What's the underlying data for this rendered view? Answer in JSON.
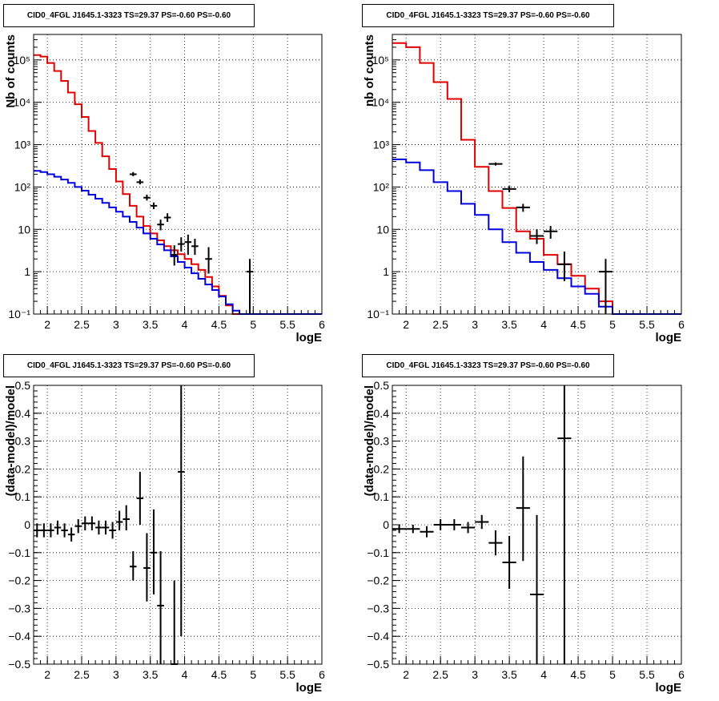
{
  "chart_data": [
    {
      "id": "p1",
      "type": "step-histogram-log",
      "title": "CID0_4FGL J1645.1-3323 TS=29.37 PS=-0.60 PS=-0.60",
      "xlabel": "logE",
      "ylabel": "Nb of counts",
      "xlim": [
        1.8,
        6
      ],
      "ylim": [
        0.1,
        400000
      ],
      "log_y": true,
      "grid": true,
      "xticks": [
        2,
        2.5,
        3,
        3.5,
        4,
        4.5,
        5,
        5.5,
        6
      ],
      "xtick_labels": [
        "2",
        "2.5",
        "3",
        "3.5",
        "4",
        "4.5",
        "5",
        "5.5",
        "6"
      ],
      "yticks": [
        0.1,
        1,
        10,
        100,
        1000,
        10000,
        100000
      ],
      "ytick_labels": [
        "10⁻¹",
        "1",
        "10",
        "10²",
        "10³",
        "10⁴",
        "10⁵"
      ],
      "bin_edges": [
        1.8,
        1.9,
        2.0,
        2.1,
        2.2,
        2.3,
        2.4,
        2.5,
        2.6,
        2.7,
        2.8,
        2.9,
        3.0,
        3.1,
        3.2,
        3.3,
        3.4,
        3.5,
        3.6,
        3.7,
        3.8,
        3.9,
        4.0,
        4.1,
        4.2,
        4.3,
        4.4,
        4.5,
        4.6,
        4.7,
        4.8,
        4.9,
        5.0,
        5.1,
        5.2,
        5.3,
        5.4,
        5.5,
        5.6,
        5.7,
        5.8,
        5.9,
        6.0
      ],
      "series": [
        {
          "color": "#e00000",
          "values": [
            130000,
            120000,
            85000,
            55000,
            32000,
            17000,
            9000,
            4500,
            2100,
            1100,
            530,
            265,
            135,
            68,
            36,
            20,
            12,
            8,
            5.5,
            4,
            3.2,
            2.6,
            2.0,
            1.5,
            1.1,
            0.75,
            0.45,
            0.27,
            0.16,
            0.1,
            0.1,
            0.1,
            0.1,
            0.1,
            0.1,
            0.1,
            0.1,
            0.1,
            0.1,
            0.1,
            0.1,
            0.1
          ]
        },
        {
          "color": "#0000dd",
          "values": [
            240,
            225,
            200,
            175,
            150,
            125,
            100,
            82,
            66,
            53,
            42,
            33,
            26,
            20,
            15,
            11,
            8,
            6,
            4.4,
            3.2,
            2.3,
            1.7,
            1.25,
            0.92,
            0.68,
            0.5,
            0.37,
            0.26,
            0.17,
            0.12,
            0.1,
            0.1,
            0.1,
            0.1,
            0.1,
            0.1,
            0.1,
            0.1,
            0.1,
            0.1,
            0.1,
            0.1
          ]
        }
      ],
      "points": [
        {
          "x": 3.25,
          "y": 200,
          "xerr": 0.05,
          "ylo": 180,
          "yhi": 225
        },
        {
          "x": 3.35,
          "y": 130,
          "xerr": 0.05,
          "ylo": 115,
          "yhi": 150
        },
        {
          "x": 3.45,
          "y": 56,
          "xerr": 0.05,
          "ylo": 48,
          "yhi": 66
        },
        {
          "x": 3.55,
          "y": 36,
          "xerr": 0.05,
          "ylo": 30,
          "yhi": 43
        },
        {
          "x": 3.65,
          "y": 13,
          "xerr": 0.05,
          "ylo": 9.5,
          "yhi": 17
        },
        {
          "x": 3.75,
          "y": 19,
          "xerr": 0.05,
          "ylo": 15,
          "yhi": 24
        },
        {
          "x": 3.85,
          "y": 2.5,
          "xerr": 0.05,
          "ylo": 1.4,
          "yhi": 4.2
        },
        {
          "x": 3.95,
          "y": 4.5,
          "xerr": 0.05,
          "ylo": 3.0,
          "yhi": 6.5
        },
        {
          "x": 4.05,
          "y": 5.0,
          "xerr": 0.05,
          "ylo": 2.5,
          "yhi": 7.5
        },
        {
          "x": 4.15,
          "y": 4.0,
          "xerr": 0.05,
          "ylo": 2.5,
          "yhi": 6.0
        },
        {
          "x": 4.35,
          "y": 2.0,
          "xerr": 0.05,
          "ylo": 0.9,
          "yhi": 3.8
        },
        {
          "x": 4.95,
          "y": 1.0,
          "xerr": 0.05,
          "ylo": 0.1,
          "yhi": 2.0
        }
      ]
    },
    {
      "id": "p2",
      "type": "step-histogram-log",
      "title": "CID0_4FGL J1645.1-3323 TS=29.37 PS=-0.60 PS=-0.60",
      "xlabel": "logE",
      "ylabel": "nb of counts",
      "xlim": [
        1.8,
        6
      ],
      "ylim": [
        0.1,
        400000
      ],
      "log_y": true,
      "grid": true,
      "xticks": [
        2,
        2.5,
        3,
        3.5,
        4,
        4.5,
        5,
        5.5,
        6
      ],
      "xtick_labels": [
        "2",
        "2.5",
        "3",
        "3.5",
        "4",
        "4.5",
        "5",
        "5.5",
        "6"
      ],
      "yticks": [
        0.1,
        1,
        10,
        100,
        1000,
        10000,
        100000
      ],
      "ytick_labels": [
        "10⁻¹",
        "1",
        "10",
        "10²",
        "10³",
        "10⁴",
        "10⁵"
      ],
      "bin_edges": [
        1.8,
        2.0,
        2.2,
        2.4,
        2.6,
        2.8,
        3.0,
        3.2,
        3.4,
        3.6,
        3.8,
        4.0,
        4.2,
        4.4,
        4.6,
        4.8,
        5.0,
        5.2,
        5.4,
        5.6,
        5.8,
        6.0
      ],
      "series": [
        {
          "color": "#e00000",
          "values": [
            250000,
            200000,
            85000,
            30000,
            12000,
            1300,
            300,
            80,
            32,
            9,
            6,
            2.5,
            1.5,
            0.8,
            0.4,
            0.2,
            0.1,
            0.1,
            0.1,
            0.1,
            0.1
          ]
        },
        {
          "color": "#0000dd",
          "values": [
            450,
            380,
            250,
            130,
            80,
            40,
            22,
            10,
            5,
            2.8,
            1.7,
            1.1,
            0.7,
            0.45,
            0.3,
            0.15,
            0.1,
            0.1,
            0.1,
            0.1,
            0.1
          ]
        }
      ],
      "points": [
        {
          "x": 3.3,
          "y": 350,
          "xerr": 0.1,
          "ylo": 320,
          "yhi": 380
        },
        {
          "x": 3.5,
          "y": 90,
          "xerr": 0.1,
          "ylo": 75,
          "yhi": 105
        },
        {
          "x": 3.7,
          "y": 33,
          "xerr": 0.1,
          "ylo": 26,
          "yhi": 40
        },
        {
          "x": 3.9,
          "y": 7,
          "xerr": 0.1,
          "ylo": 4.5,
          "yhi": 10
        },
        {
          "x": 4.1,
          "y": 9,
          "xerr": 0.1,
          "ylo": 6,
          "yhi": 12
        },
        {
          "x": 4.3,
          "y": 1.5,
          "xerr": 0.1,
          "ylo": 0.6,
          "yhi": 3
        },
        {
          "x": 4.9,
          "y": 1.0,
          "xerr": 0.1,
          "ylo": 0.1,
          "yhi": 2
        }
      ]
    },
    {
      "id": "p3",
      "type": "scatter-errorbars",
      "title": "CID0_4FGL J1645.1-3323 TS=29.37 PS=-0.60 PS=-0.60",
      "xlabel": "logE",
      "ylabel": "(data-model)/model",
      "xlim": [
        1.8,
        6
      ],
      "ylim": [
        -0.5,
        0.5
      ],
      "log_y": false,
      "grid": true,
      "xticks": [
        2,
        2.5,
        3,
        3.5,
        4,
        4.5,
        5,
        5.5,
        6
      ],
      "xtick_labels": [
        "2",
        "2.5",
        "3",
        "3.5",
        "4",
        "4.5",
        "5",
        "5.5",
        "6"
      ],
      "yticks": [
        -0.5,
        -0.4,
        -0.3,
        -0.2,
        -0.1,
        0,
        0.1,
        0.2,
        0.3,
        0.4,
        0.5
      ],
      "ytick_labels": [
        "−0.5",
        "−0.4",
        "−0.3",
        "−0.2",
        "−0.1",
        "0",
        "0.1",
        "0.2",
        "0.3",
        "0.4",
        "0.5"
      ],
      "points": [
        {
          "x": 1.85,
          "y": -0.02,
          "xerr": 0.05,
          "ylo": -0.045,
          "yhi": 0.005
        },
        {
          "x": 1.95,
          "y": -0.02,
          "xerr": 0.05,
          "ylo": -0.045,
          "yhi": 0.005
        },
        {
          "x": 2.05,
          "y": -0.02,
          "xerr": 0.05,
          "ylo": -0.045,
          "yhi": 0.005
        },
        {
          "x": 2.15,
          "y": -0.01,
          "xerr": 0.05,
          "ylo": -0.035,
          "yhi": 0.015
        },
        {
          "x": 2.25,
          "y": -0.02,
          "xerr": 0.05,
          "ylo": -0.045,
          "yhi": 0.005
        },
        {
          "x": 2.35,
          "y": -0.035,
          "xerr": 0.05,
          "ylo": -0.06,
          "yhi": -0.01
        },
        {
          "x": 2.45,
          "y": -0.005,
          "xerr": 0.05,
          "ylo": -0.03,
          "yhi": 0.02
        },
        {
          "x": 2.55,
          "y": 0.005,
          "xerr": 0.05,
          "ylo": -0.02,
          "yhi": 0.03
        },
        {
          "x": 2.65,
          "y": 0.005,
          "xerr": 0.05,
          "ylo": -0.02,
          "yhi": 0.03
        },
        {
          "x": 2.75,
          "y": -0.01,
          "xerr": 0.05,
          "ylo": -0.035,
          "yhi": 0.015
        },
        {
          "x": 2.85,
          "y": -0.01,
          "xerr": 0.05,
          "ylo": -0.035,
          "yhi": 0.015
        },
        {
          "x": 2.95,
          "y": -0.02,
          "xerr": 0.05,
          "ylo": -0.05,
          "yhi": 0.01
        },
        {
          "x": 3.05,
          "y": 0.01,
          "xerr": 0.05,
          "ylo": -0.02,
          "yhi": 0.05
        },
        {
          "x": 3.15,
          "y": 0.02,
          "xerr": 0.05,
          "ylo": -0.02,
          "yhi": 0.07
        },
        {
          "x": 3.25,
          "y": -0.15,
          "xerr": 0.05,
          "ylo": -0.2,
          "yhi": -0.095
        },
        {
          "x": 3.35,
          "y": 0.095,
          "xerr": 0.05,
          "ylo": 0.0,
          "yhi": 0.19
        },
        {
          "x": 3.45,
          "y": -0.155,
          "xerr": 0.05,
          "ylo": -0.275,
          "yhi": -0.03
        },
        {
          "x": 3.55,
          "y": -0.1,
          "xerr": 0.05,
          "ylo": -0.25,
          "yhi": 0.055
        },
        {
          "x": 3.65,
          "y": -0.29,
          "xerr": 0.05,
          "ylo": -0.5,
          "yhi": -0.095
        },
        {
          "x": 3.85,
          "y": -0.5,
          "xerr": 0.05,
          "ylo": -0.5,
          "yhi": -0.2
        },
        {
          "x": 3.95,
          "y": 0.19,
          "xerr": 0.05,
          "ylo": -0.4,
          "yhi": 0.5
        }
      ]
    },
    {
      "id": "p4",
      "type": "scatter-errorbars",
      "title": "CID0_4FGL J1645.1-3323 TS=29.37 PS=-0.60 PS=-0.60",
      "xlabel": "logE",
      "ylabel": "(data-model)/model",
      "xlim": [
        1.8,
        6
      ],
      "ylim": [
        -0.5,
        0.5
      ],
      "log_y": false,
      "grid": true,
      "xticks": [
        2,
        2.5,
        3,
        3.5,
        4,
        4.5,
        5,
        5.5,
        6
      ],
      "xtick_labels": [
        "2",
        "2.5",
        "3",
        "3.5",
        "4",
        "4.5",
        "5",
        "5.5",
        "6"
      ],
      "yticks": [
        -0.5,
        -0.4,
        -0.3,
        -0.2,
        -0.1,
        0,
        0.1,
        0.2,
        0.3,
        0.4,
        0.5
      ],
      "ytick_labels": [
        "−0.5",
        "−0.4",
        "−0.3",
        "−0.2",
        "−0.1",
        "0",
        "0.1",
        "0.2",
        "0.3",
        "0.4",
        "0.5"
      ],
      "points": [
        {
          "x": 1.9,
          "y": -0.015,
          "xerr": 0.1,
          "ylo": -0.03,
          "yhi": 0.0
        },
        {
          "x": 2.1,
          "y": -0.015,
          "xerr": 0.1,
          "ylo": -0.03,
          "yhi": 0.0
        },
        {
          "x": 2.3,
          "y": -0.025,
          "xerr": 0.1,
          "ylo": -0.045,
          "yhi": -0.005
        },
        {
          "x": 2.5,
          "y": 0.0,
          "xerr": 0.1,
          "ylo": -0.02,
          "yhi": 0.02
        },
        {
          "x": 2.7,
          "y": 0.0,
          "xerr": 0.1,
          "ylo": -0.02,
          "yhi": 0.02
        },
        {
          "x": 2.9,
          "y": -0.01,
          "xerr": 0.1,
          "ylo": -0.03,
          "yhi": 0.01
        },
        {
          "x": 3.1,
          "y": 0.01,
          "xerr": 0.1,
          "ylo": -0.015,
          "yhi": 0.035
        },
        {
          "x": 3.3,
          "y": -0.065,
          "xerr": 0.1,
          "ylo": -0.11,
          "yhi": -0.02
        },
        {
          "x": 3.5,
          "y": -0.135,
          "xerr": 0.1,
          "ylo": -0.23,
          "yhi": -0.04
        },
        {
          "x": 3.7,
          "y": 0.06,
          "xerr": 0.1,
          "ylo": -0.13,
          "yhi": 0.245
        },
        {
          "x": 3.9,
          "y": -0.25,
          "xerr": 0.1,
          "ylo": -0.5,
          "yhi": 0.035
        },
        {
          "x": 4.3,
          "y": 0.31,
          "xerr": 0.1,
          "ylo": -0.5,
          "yhi": 0.5
        }
      ]
    }
  ]
}
